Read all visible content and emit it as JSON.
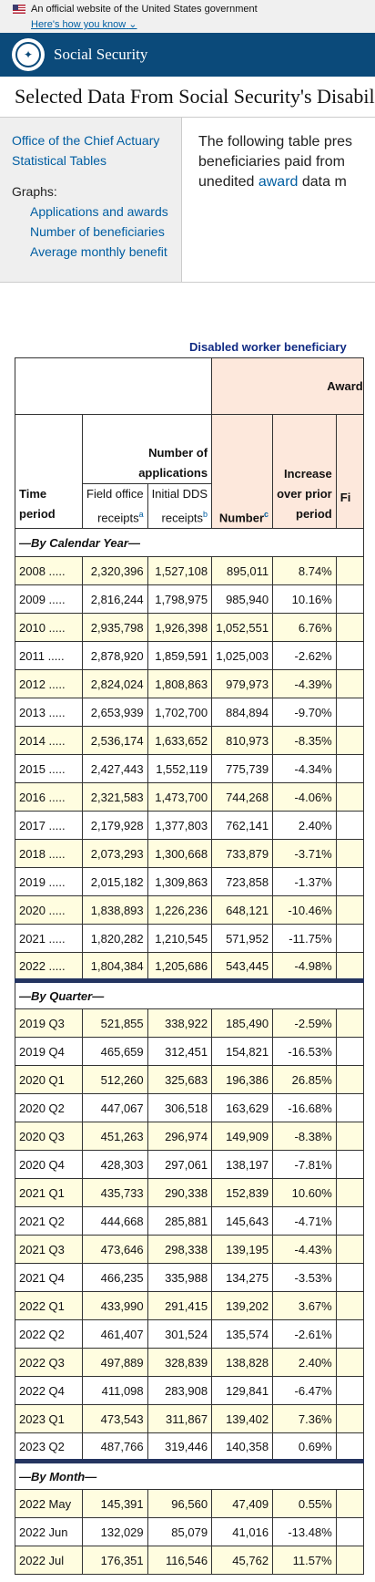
{
  "gov_banner": {
    "text": "An official website of the United States government",
    "link": "Here's how you know"
  },
  "header": {
    "brand": "Social Security"
  },
  "page_title": "Selected Data From Social Security's Disability",
  "sidebar": {
    "links": [
      "Office of the Chief Actuary",
      "Statistical Tables"
    ],
    "graphs_label": "Graphs:",
    "graph_links": [
      "Applications and awards",
      "Number of beneficiaries",
      "Average monthly benefit"
    ]
  },
  "intro": {
    "line1": "The following table pres",
    "line2": "beneficiaries paid from",
    "line3_pre": "unedited ",
    "line3_link": "award",
    "line3_post": " data m"
  },
  "table": {
    "caption": "Disabled worker beneficiary",
    "headers": {
      "awards": "Award",
      "num_apps_l1": "Number of",
      "num_apps_l2": "applications",
      "time_l1": "Time",
      "time_l2": "period",
      "field_l1": "Field office",
      "field_l2": "receipts",
      "field_sup": "a",
      "dds_l1": "Initial DDS",
      "dds_l2": "receipts",
      "dds_sup": "b",
      "number": "Number",
      "number_sup": "c",
      "inc_l1": "Increase",
      "inc_l2": "over prior",
      "inc_l3": "period",
      "fi_l2": "Fi"
    },
    "sections": [
      {
        "title": "—By Calendar Year—",
        "rows": [
          [
            "2008 .....",
            "2,320,396",
            "1,527,108",
            "895,011",
            "8.74%"
          ],
          [
            "2009 .....",
            "2,816,244",
            "1,798,975",
            "985,940",
            "10.16%"
          ],
          [
            "2010 .....",
            "2,935,798",
            "1,926,398",
            "1,052,551",
            "6.76%"
          ],
          [
            "2011 .....",
            "2,878,920",
            "1,859,591",
            "1,025,003",
            "-2.62%"
          ],
          [
            "2012 .....",
            "2,824,024",
            "1,808,863",
            "979,973",
            "-4.39%"
          ],
          [
            "2013 .....",
            "2,653,939",
            "1,702,700",
            "884,894",
            "-9.70%"
          ],
          [
            "2014 .....",
            "2,536,174",
            "1,633,652",
            "810,973",
            "-8.35%"
          ],
          [
            "2015 .....",
            "2,427,443",
            "1,552,119",
            "775,739",
            "-4.34%"
          ],
          [
            "2016 .....",
            "2,321,583",
            "1,473,700",
            "744,268",
            "-4.06%"
          ],
          [
            "2017 .....",
            "2,179,928",
            "1,377,803",
            "762,141",
            "2.40%"
          ],
          [
            "2018 .....",
            "2,073,293",
            "1,300,668",
            "733,879",
            "-3.71%"
          ],
          [
            "2019 .....",
            "2,015,182",
            "1,309,863",
            "723,858",
            "-1.37%"
          ],
          [
            "2020 .....",
            "1,838,893",
            "1,226,236",
            "648,121",
            "-10.46%"
          ],
          [
            "2021 .....",
            "1,820,282",
            "1,210,545",
            "571,952",
            "-11.75%"
          ],
          [
            "2022 .....",
            "1,804,384",
            "1,205,686",
            "543,445",
            "-4.98%"
          ]
        ]
      },
      {
        "title": "—By Quarter—",
        "rows": [
          [
            "2019 Q3",
            "521,855",
            "338,922",
            "185,490",
            "-2.59%"
          ],
          [
            "2019 Q4",
            "465,659",
            "312,451",
            "154,821",
            "-16.53%"
          ],
          [
            "2020 Q1",
            "512,260",
            "325,683",
            "196,386",
            "26.85%"
          ],
          [
            "2020 Q2",
            "447,067",
            "306,518",
            "163,629",
            "-16.68%"
          ],
          [
            "2020 Q3",
            "451,263",
            "296,974",
            "149,909",
            "-8.38%"
          ],
          [
            "2020 Q4",
            "428,303",
            "297,061",
            "138,197",
            "-7.81%"
          ],
          [
            "2021 Q1",
            "435,733",
            "290,338",
            "152,839",
            "10.60%"
          ],
          [
            "2021 Q2",
            "444,668",
            "285,881",
            "145,643",
            "-4.71%"
          ],
          [
            "2021 Q3",
            "473,646",
            "298,338",
            "139,195",
            "-4.43%"
          ],
          [
            "2021 Q4",
            "466,235",
            "335,988",
            "134,275",
            "-3.53%"
          ],
          [
            "2022 Q1",
            "433,990",
            "291,415",
            "139,202",
            "3.67%"
          ],
          [
            "2022 Q2",
            "461,407",
            "301,524",
            "135,574",
            "-2.61%"
          ],
          [
            "2022 Q3",
            "497,889",
            "328,839",
            "138,828",
            "2.40%"
          ],
          [
            "2022 Q4",
            "411,098",
            "283,908",
            "129,841",
            "-6.47%"
          ],
          [
            "2023 Q1",
            "473,543",
            "311,867",
            "139,402",
            "7.36%"
          ],
          [
            "2023 Q2",
            "487,766",
            "319,446",
            "140,358",
            "0.69%"
          ]
        ]
      },
      {
        "title": "—By Month—",
        "rows": [
          [
            "2022 May",
            "145,391",
            "96,560",
            "47,409",
            "0.55%"
          ],
          [
            "2022 Jun",
            "132,029",
            "85,079",
            "41,016",
            "-13.48%"
          ],
          [
            "2022 Jul",
            "176,351",
            "116,546",
            "45,762",
            "11.57%"
          ]
        ]
      }
    ]
  }
}
